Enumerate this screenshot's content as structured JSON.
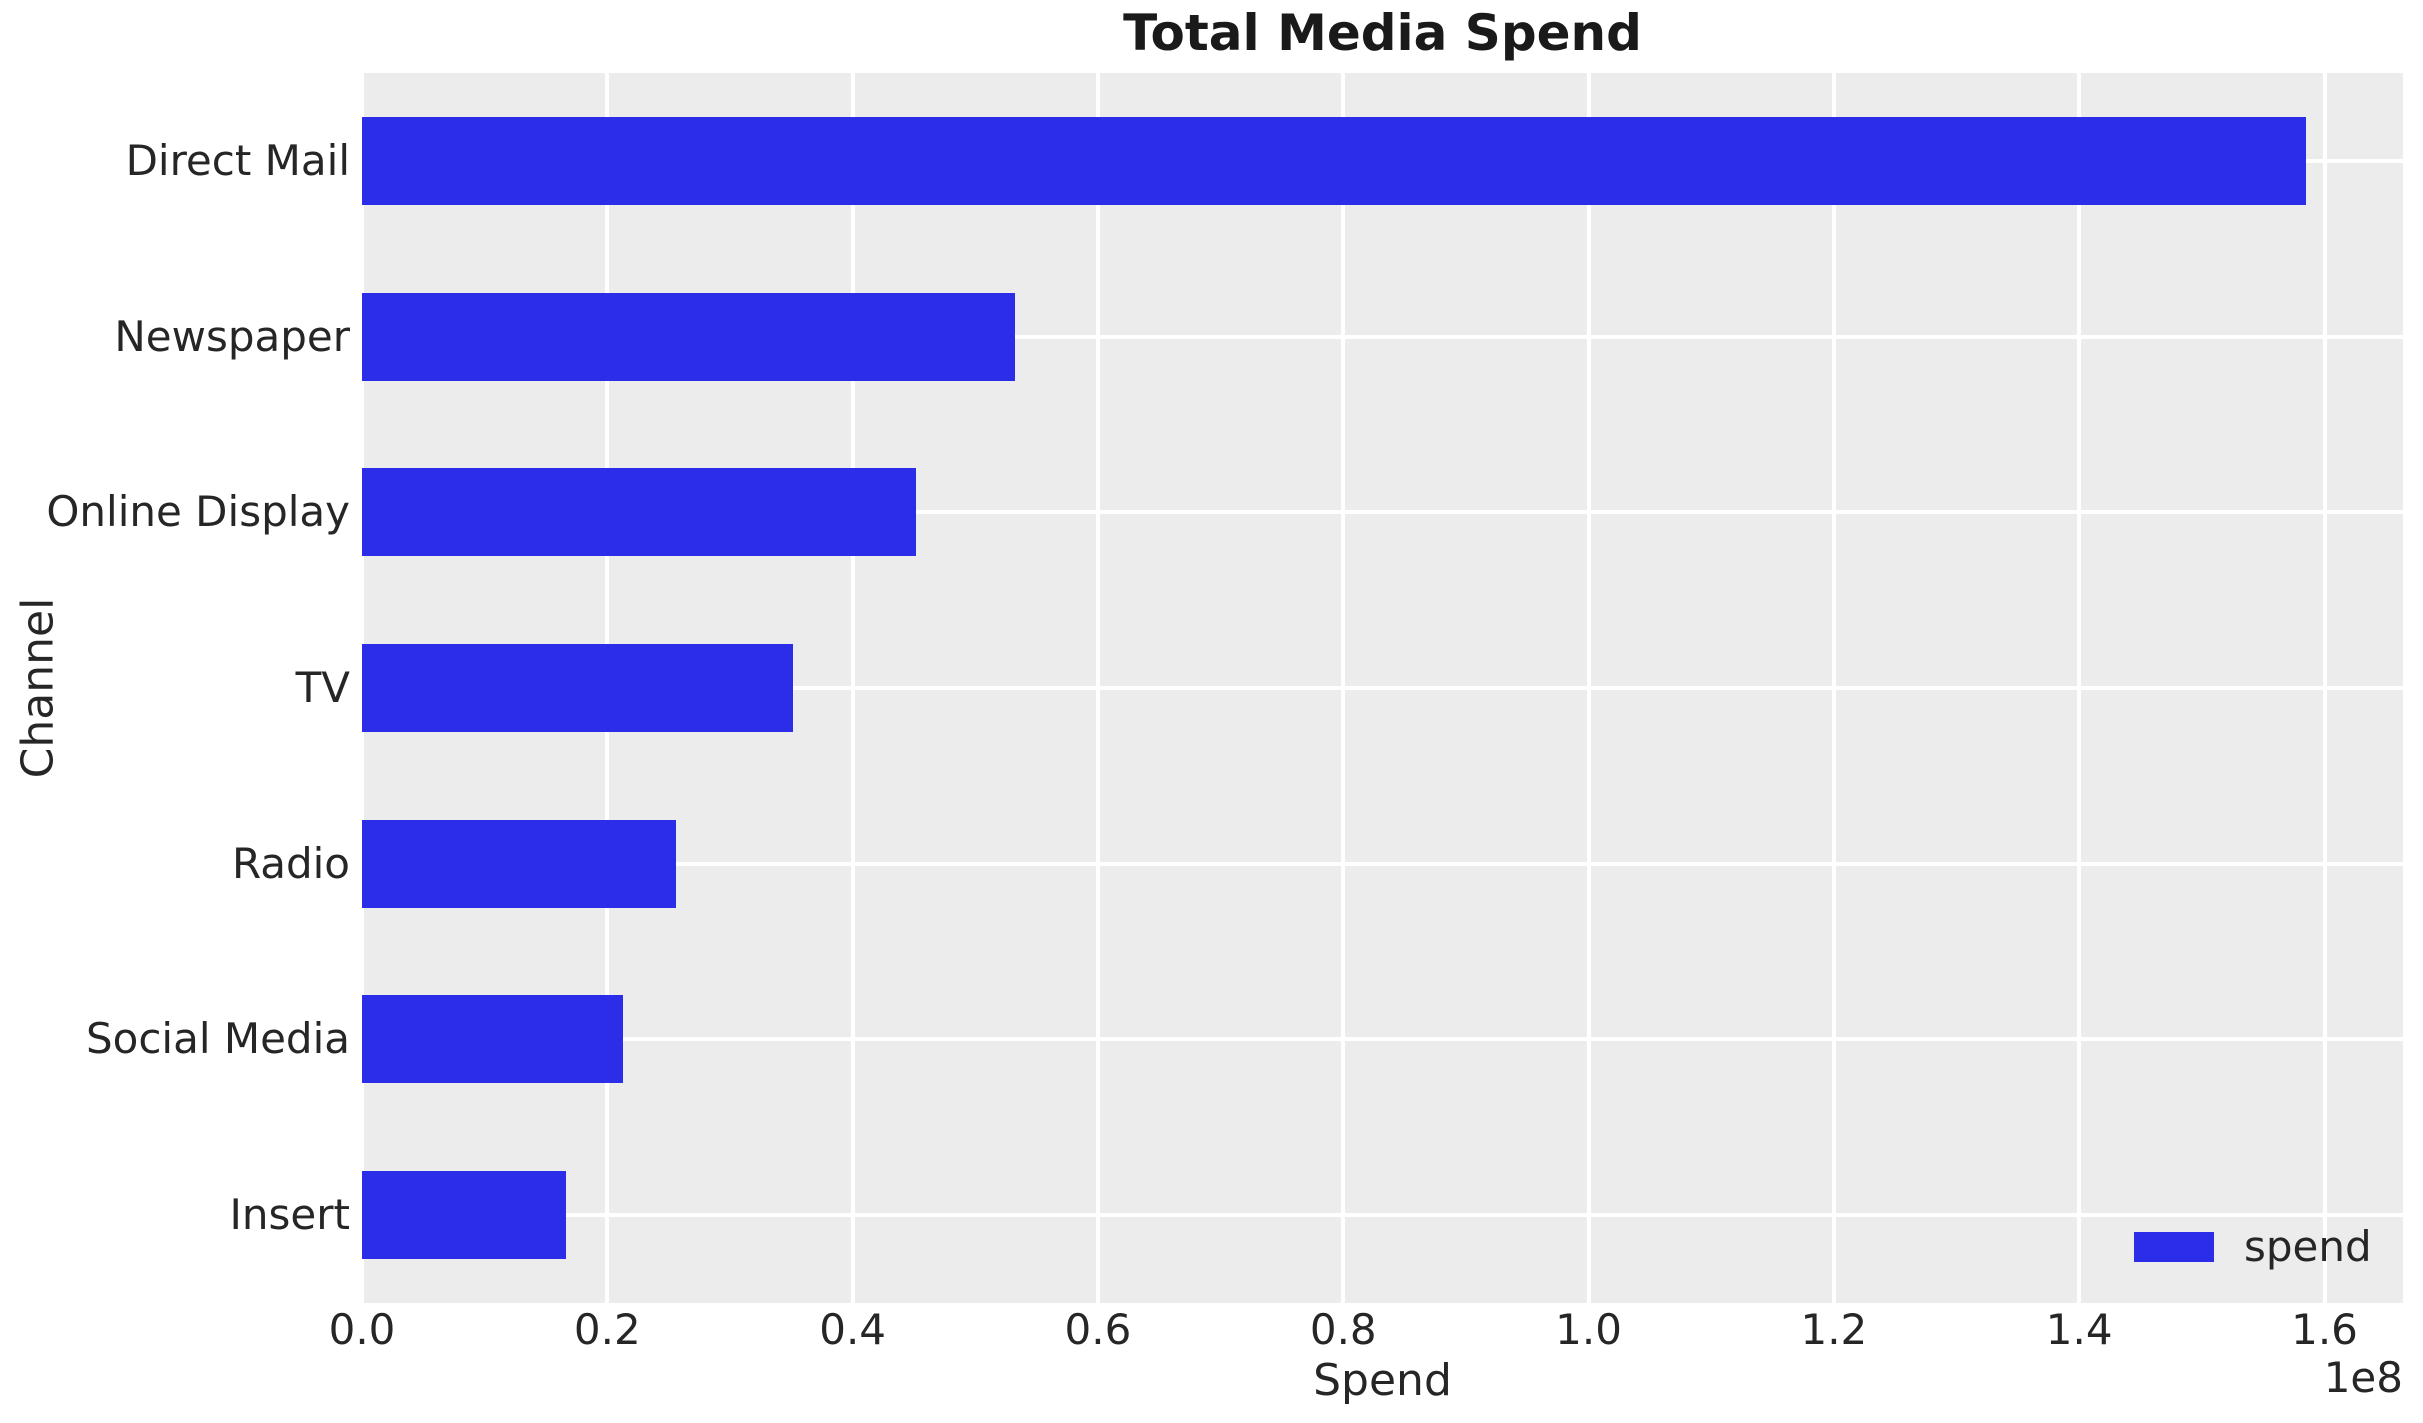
{
  "style": {
    "figure_bg": "#ffffff",
    "plot_bg": "#ececec",
    "grid_color": "#ffffff",
    "bar_color": "#2b2de8",
    "text_color": "#262626",
    "title_color": "#1a1a1a"
  },
  "chart_data": {
    "type": "bar",
    "orientation": "horizontal",
    "title": "Total Media Spend",
    "xlabel": "Spend",
    "ylabel": "Channel",
    "categories": [
      "Direct Mail",
      "Newspaper",
      "Online Display",
      "TV",
      "Radio",
      "Social Media",
      "Insert"
    ],
    "series": [
      {
        "name": "spend",
        "values": [
          158500000,
          53200000,
          45200000,
          35100000,
          25600000,
          21300000,
          16600000
        ]
      }
    ],
    "xlim": [
      0,
      166400000
    ],
    "x_ticks": [
      {
        "value": 0,
        "label": "0.0"
      },
      {
        "value": 20000000,
        "label": "0.2"
      },
      {
        "value": 40000000,
        "label": "0.4"
      },
      {
        "value": 60000000,
        "label": "0.6"
      },
      {
        "value": 80000000,
        "label": "0.8"
      },
      {
        "value": 100000000,
        "label": "1.0"
      },
      {
        "value": 120000000,
        "label": "1.2"
      },
      {
        "value": 140000000,
        "label": "1.4"
      },
      {
        "value": 160000000,
        "label": "1.6"
      }
    ],
    "x_offset_label": "1e8",
    "bar_fraction": 0.5,
    "grid": true,
    "legend": {
      "position": "lower-right",
      "label": "spend"
    }
  }
}
